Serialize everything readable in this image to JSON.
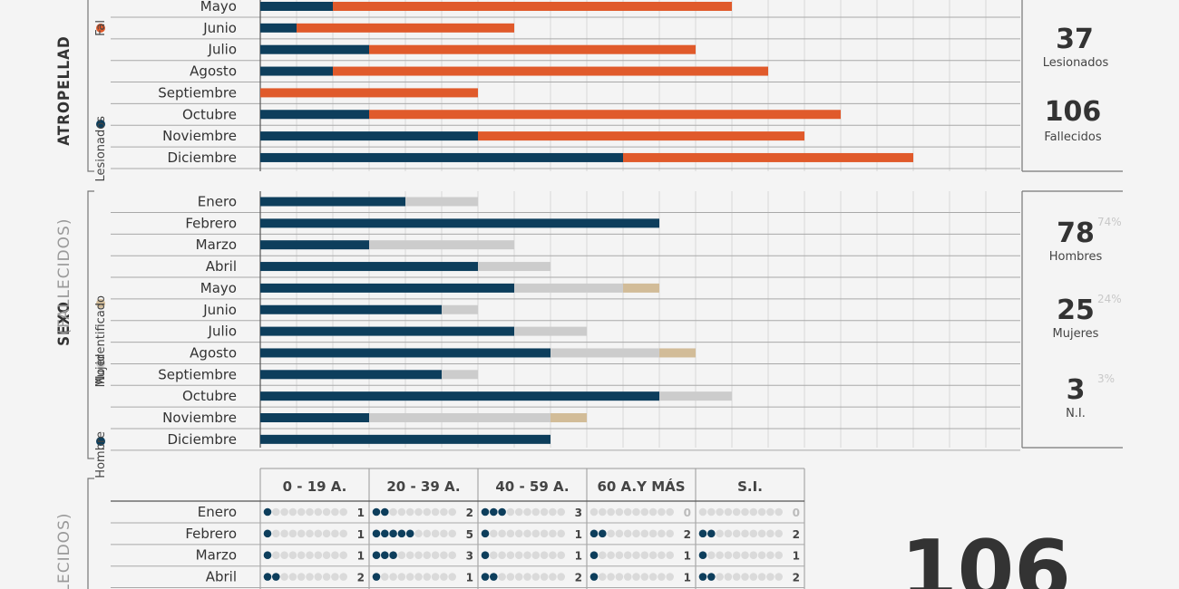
{
  "colors": {
    "navy": "#0d3e5c",
    "orange": "#e05a2b",
    "grey": "#cccccc",
    "beige": "#d2bc98",
    "dotgrey": "#dadada"
  },
  "chart_data": [
    {
      "type": "bar",
      "section_label": "ATROPELLAD",
      "legend": [
        {
          "name": "Lesionados",
          "color": "#0d3e5c"
        },
        {
          "name": "Fal",
          "color": "#e05a2b"
        }
      ],
      "categories": [
        "Mayo",
        "Junio",
        "Julio",
        "Agosto",
        "Septiembre",
        "Octubre",
        "Noviembre",
        "Diciembre"
      ],
      "series": [
        {
          "name": "Lesionados",
          "values": [
            2,
            1,
            3,
            2,
            0,
            3,
            6,
            10
          ]
        },
        {
          "name": "Fal",
          "values": [
            11,
            6,
            9,
            12,
            6,
            13,
            9,
            8
          ]
        }
      ],
      "stats": [
        {
          "value": "37",
          "label": "Lesionados"
        },
        {
          "value": "106",
          "label": "Fallecidos"
        }
      ]
    },
    {
      "type": "bar",
      "section_label": "SEXO",
      "section_sub": "(FALLECIDOS)",
      "legend": [
        {
          "name": "Hombre",
          "color": "#0d3e5c"
        },
        {
          "name": "Mujer",
          "color": "#cccccc"
        },
        {
          "name": "No identificado",
          "color": "#d2bc98"
        }
      ],
      "categories": [
        "Enero",
        "Febrero",
        "Marzo",
        "Abril",
        "Mayo",
        "Junio",
        "Julio",
        "Agosto",
        "Septiembre",
        "Octubre",
        "Noviembre",
        "Diciembre"
      ],
      "series": [
        {
          "name": "Hombre",
          "values": [
            4,
            11,
            3,
            6,
            7,
            5,
            7,
            8,
            5,
            11,
            3,
            8
          ]
        },
        {
          "name": "Mujer",
          "values": [
            2,
            0,
            4,
            2,
            3,
            1,
            2,
            3,
            1,
            2,
            5,
            0
          ]
        },
        {
          "name": "No identificado",
          "values": [
            0,
            0,
            0,
            0,
            1,
            0,
            0,
            1,
            0,
            0,
            1,
            0
          ]
        }
      ],
      "stats": [
        {
          "value": "78",
          "pct": "74%",
          "label": "Hombres"
        },
        {
          "value": "25",
          "pct": "24%",
          "label": "Mujeres"
        },
        {
          "value": "3",
          "pct": "3%",
          "label": "N.I."
        }
      ]
    },
    {
      "type": "table",
      "section_label": "LECIDOS)",
      "columns": [
        "0 - 19 A.",
        "20 - 39 A.",
        "40 - 59 A.",
        "60 A.Y MÁS",
        "S.I."
      ],
      "rows": [
        {
          "month": "Enero",
          "values": [
            1,
            2,
            3,
            0,
            0
          ]
        },
        {
          "month": "Febrero",
          "values": [
            1,
            5,
            1,
            2,
            2
          ]
        },
        {
          "month": "Marzo",
          "values": [
            1,
            3,
            1,
            1,
            1
          ]
        },
        {
          "month": "Abril",
          "values": [
            2,
            1,
            2,
            1,
            2
          ]
        }
      ],
      "total": "106"
    }
  ]
}
